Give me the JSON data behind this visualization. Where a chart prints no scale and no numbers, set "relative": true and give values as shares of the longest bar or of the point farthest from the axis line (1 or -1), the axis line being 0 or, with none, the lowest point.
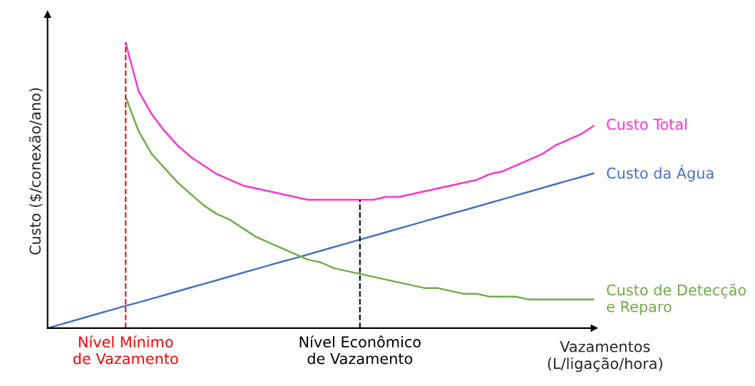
{
  "chart_data": {
    "type": "line",
    "relative": true,
    "ylabel": "Custo ($/conexão/ano)",
    "xlabel": "Vazamentos\n(L/ligação/hora)",
    "categories": [
      null,
      null,
      null,
      null,
      null,
      null,
      "Nível Mínimo\nde Vazamento",
      null,
      null,
      null,
      null,
      null,
      null,
      null,
      null,
      null,
      null,
      null,
      null,
      null,
      null,
      null,
      null,
      null,
      "Nível Econômico\nde Vazamento",
      null,
      null,
      null,
      null,
      null,
      null,
      null,
      null,
      null,
      null,
      null,
      null,
      null,
      null,
      null,
      null,
      null,
      null
    ],
    "series": [
      {
        "name": "Custo Total",
        "color": "#ff33cc",
        "values": [
          null,
          null,
          null,
          null,
          null,
          null,
          1.0,
          0.83,
          0.75,
          0.69,
          0.64,
          0.6,
          0.57,
          0.54,
          0.52,
          0.5,
          0.49,
          0.48,
          0.47,
          0.46,
          0.45,
          0.45,
          0.45,
          0.45,
          0.45,
          0.45,
          0.46,
          0.46,
          0.47,
          0.48,
          0.49,
          0.5,
          0.51,
          0.52,
          0.54,
          0.55,
          0.57,
          0.59,
          0.61,
          0.64,
          0.66,
          0.68,
          0.71
        ]
      },
      {
        "name": "Custo da Água",
        "color": "#4472c4",
        "values": [
          0.0,
          0.013,
          0.026,
          0.039,
          0.052,
          0.065,
          0.078,
          0.09,
          0.103,
          0.116,
          0.129,
          0.142,
          0.155,
          0.168,
          0.181,
          0.194,
          0.207,
          0.22,
          0.233,
          0.245,
          0.258,
          0.271,
          0.284,
          0.297,
          0.31,
          0.323,
          0.336,
          0.349,
          0.362,
          0.375,
          0.388,
          0.401,
          0.413,
          0.426,
          0.439,
          0.452,
          0.465,
          0.478,
          0.491,
          0.504,
          0.517,
          0.53,
          0.543
        ]
      },
      {
        "name": "Custo de Detecção\ne Reparo",
        "color": "#70ad47",
        "values": [
          null,
          null,
          null,
          null,
          null,
          null,
          0.81,
          0.69,
          0.61,
          0.56,
          0.51,
          0.47,
          0.43,
          0.4,
          0.38,
          0.35,
          0.32,
          0.3,
          0.28,
          0.26,
          0.24,
          0.23,
          0.21,
          0.2,
          0.19,
          0.18,
          0.17,
          0.16,
          0.15,
          0.14,
          0.14,
          0.13,
          0.12,
          0.12,
          0.11,
          0.11,
          0.11,
          0.1,
          0.1,
          0.1,
          0.1,
          0.1,
          0.1
        ]
      }
    ],
    "ref_lines": [
      {
        "axis": "x",
        "value": "Nível Mínimo\nde Vazamento",
        "color": "#ff0000",
        "line_style": "dashed"
      },
      {
        "axis": "x",
        "value": "Nível Econômico\nde Vazamento",
        "color": "#000000",
        "line_style": "dashed"
      }
    ],
    "legend": false,
    "marker": "none",
    "line_style": "solid",
    "tick_labels": "x"
  }
}
